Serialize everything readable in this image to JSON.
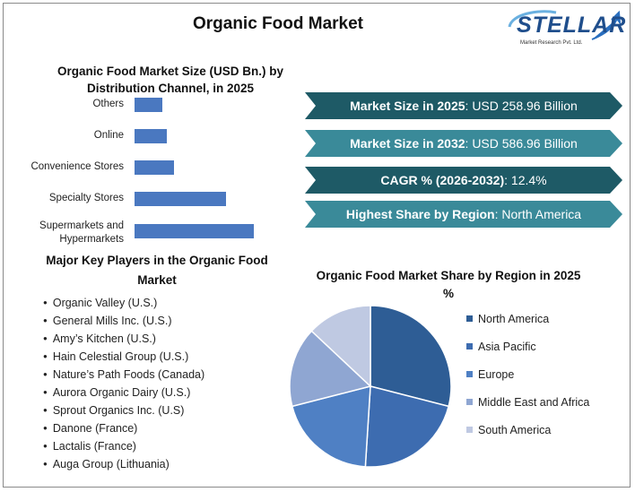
{
  "header": {
    "title": "Organic Food Market",
    "logo_text": "STELLAR",
    "logo_sub": "Market Research Pvt. Ltd."
  },
  "bar_chart_title": "Organic Food Market Size (USD Bn.) by Distribution Channel, in 2025",
  "stats": [
    {
      "label": "Market Size in 2025",
      "value": ": USD 258.96 Billion",
      "color": "#1e5a66"
    },
    {
      "label": "Market Size in 2032",
      "value": ": USD 586.96 Billion",
      "color": "#3a8a99"
    },
    {
      "label": "CAGR % (2026-2032)",
      "value": ": 12.4%",
      "color": "#1e5a66"
    },
    {
      "label": "Highest Share by Region",
      "value": ": North America",
      "color": "#3a8a99"
    }
  ],
  "players_title": "Major Key Players in the Organic Food Market",
  "players": [
    "Organic Valley (U.S.)",
    "General Mills Inc. (U.S.)",
    "Amy’s Kitchen (U.S.)",
    "Hain Celestial Group (U.S.)",
    "Nature’s Path Foods (Canada)",
    "Aurora Organic Dairy (U.S.)",
    "Sprout Organics Inc. (U.S)",
    "Danone (France)",
    "Lactalis (France)",
    "Auga Group (Lithuania)"
  ],
  "pie_title": "Organic Food Market Share by Region in 2025 %",
  "chart_data": [
    {
      "type": "bar",
      "orientation": "horizontal",
      "title": "Organic Food Market Size (USD Bn.) by Distribution Channel, in 2025",
      "categories": [
        "Others",
        "Online",
        "Convenience Stores",
        "Specialty Stores",
        "Supermarkets and Hypermarkets"
      ],
      "values": [
        12,
        14,
        17,
        40,
        52
      ],
      "xlim": [
        0,
        55
      ],
      "color": "#4a78c0",
      "grid": false
    },
    {
      "type": "pie",
      "title": "Organic Food Market Share by Region in 2025 %",
      "categories": [
        "North America",
        "Asia Pacific",
        "Europe",
        "Middle East and Africa",
        "South America"
      ],
      "values": [
        29,
        22,
        20,
        16,
        13
      ],
      "colors": [
        "#2e5d95",
        "#3d6cb0",
        "#4f80c4",
        "#8fa6d2",
        "#bfc9e2"
      ],
      "legend_position": "right"
    }
  ]
}
